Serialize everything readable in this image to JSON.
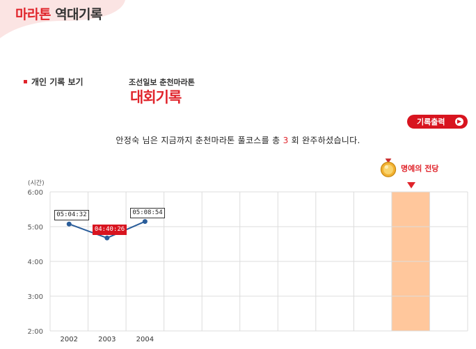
{
  "header": {
    "title_red": "마라톤",
    "title_dark": "역대기록"
  },
  "nav": {
    "personal_records": "개인 기록 보기"
  },
  "event": {
    "subtitle": "조선일보 춘천마라톤",
    "title": "대회기록"
  },
  "toolbar": {
    "print_label": "기록출력"
  },
  "summary": {
    "prefix": "안정숙 님은 지금까지 춘천마라톤 풀코스를 총",
    "count": "3",
    "suffix": "회 완주하셨습니다."
  },
  "hall_of_fame": {
    "label": "명예의 전당"
  },
  "colors": {
    "accent": "#e0242b",
    "line": "#2a5d9a",
    "hall_column": "#ffc79c"
  },
  "chart_data": {
    "type": "line",
    "ylabel": "(시간)",
    "y_ticks": [
      "6:00",
      "5:00",
      "4:00",
      "3:00",
      "2:00"
    ],
    "ylim_minutes": [
      120,
      360
    ],
    "categories": [
      "2002",
      "2003",
      "2004"
    ],
    "columns_total": 11,
    "hall_column_index": 9,
    "series": [
      {
        "values_minutes": [
          304.53,
          280.43,
          308.9
        ],
        "labels": [
          "05:04:32",
          "04:40:26",
          "05:08:54"
        ],
        "best_index": 1
      }
    ]
  }
}
